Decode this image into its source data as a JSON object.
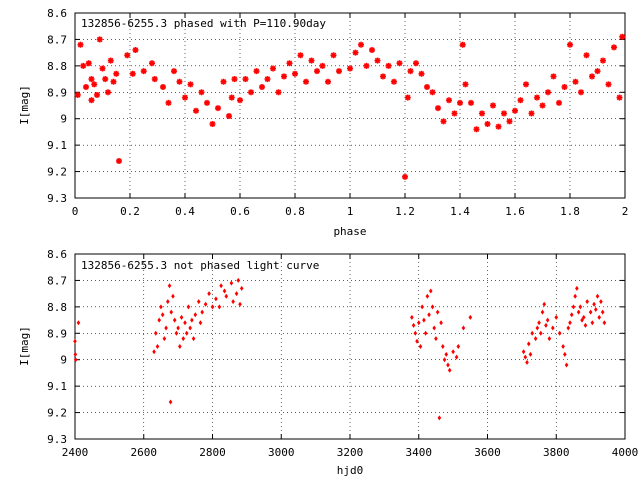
{
  "chart_data": [
    {
      "type": "scatter",
      "title": "132856-6255.3 phased with P=110.90day",
      "xlabel": "phase",
      "ylabel": "I[mag]",
      "xlim": [
        0,
        2
      ],
      "ylim": [
        8.6,
        9.3
      ],
      "y_inverted": true,
      "xticks": [
        0,
        0.2,
        0.4,
        0.6,
        0.8,
        1,
        1.2,
        1.4,
        1.6,
        1.8,
        2
      ],
      "yticks": [
        8.6,
        8.7,
        8.8,
        8.9,
        9,
        9.1,
        9.2,
        9.3
      ],
      "marker": "star",
      "color": "#ff0000",
      "x": [
        0.01,
        0.02,
        0.03,
        0.04,
        0.05,
        0.06,
        0.06,
        0.07,
        0.08,
        0.09,
        0.1,
        0.11,
        0.12,
        0.13,
        0.14,
        0.15,
        0.16,
        0.19,
        0.21,
        0.22,
        0.25,
        0.28,
        0.29,
        0.32,
        0.34,
        0.36,
        0.38,
        0.4,
        0.42,
        0.44,
        0.46,
        0.48,
        0.5,
        0.52,
        0.54,
        0.56,
        0.57,
        0.58,
        0.6,
        0.62,
        0.64,
        0.66,
        0.68,
        0.7,
        0.72,
        0.74,
        0.76,
        0.78,
        0.8,
        0.82,
        0.84,
        0.86,
        0.88,
        0.9,
        0.92,
        0.94,
        0.96,
        1.0,
        1.02,
        1.04,
        1.06,
        1.08,
        1.1,
        1.12,
        1.14,
        1.16,
        1.18,
        1.2,
        1.21,
        1.22,
        1.24,
        1.26,
        1.28,
        1.3,
        1.32,
        1.34,
        1.36,
        1.38,
        1.4,
        1.41,
        1.42,
        1.44,
        1.46,
        1.48,
        1.5,
        1.52,
        1.54,
        1.56,
        1.58,
        1.6,
        1.62,
        1.64,
        1.66,
        1.68,
        1.7,
        1.72,
        1.74,
        1.76,
        1.78,
        1.8,
        1.82,
        1.84,
        1.86,
        1.88,
        1.9,
        1.92,
        1.94,
        1.96,
        1.98,
        1.99
      ],
      "y": [
        8.91,
        8.72,
        8.8,
        8.88,
        8.79,
        8.85,
        8.93,
        8.87,
        8.91,
        8.7,
        8.81,
        8.85,
        8.9,
        8.78,
        8.86,
        8.83,
        9.16,
        8.76,
        8.83,
        8.74,
        8.82,
        8.79,
        8.85,
        8.88,
        8.94,
        8.82,
        8.86,
        8.92,
        8.87,
        8.97,
        8.9,
        8.94,
        9.02,
        8.96,
        8.86,
        8.99,
        8.92,
        8.85,
        8.93,
        8.85,
        8.9,
        8.82,
        8.88,
        8.85,
        8.81,
        8.9,
        8.84,
        8.79,
        8.83,
        8.76,
        8.86,
        8.78,
        8.82,
        8.8,
        8.86,
        8.76,
        8.82,
        8.81,
        8.75,
        8.72,
        8.8,
        8.74,
        8.78,
        8.84,
        8.8,
        8.86,
        8.79,
        9.22,
        8.92,
        8.82,
        8.79,
        8.83,
        8.88,
        8.9,
        8.96,
        9.01,
        8.93,
        8.98,
        8.94,
        8.72,
        8.87,
        8.94,
        9.04,
        8.98,
        9.02,
        8.95,
        9.03,
        8.98,
        9.01,
        8.97,
        8.93,
        8.87,
        8.98,
        8.92,
        8.95,
        8.9,
        8.84,
        8.94,
        8.88,
        8.72,
        8.86,
        8.9,
        8.76,
        8.84,
        8.82,
        8.78,
        8.87,
        8.73,
        8.92,
        8.69
      ]
    },
    {
      "type": "scatter",
      "title": "132856-6255.3 not phased light curve",
      "xlabel": "hjd0",
      "ylabel": "I[mag]",
      "xlim": [
        2400,
        4000
      ],
      "ylim": [
        8.6,
        9.3
      ],
      "y_inverted": true,
      "xticks": [
        2400,
        2600,
        2800,
        3000,
        3200,
        3400,
        3600,
        3800,
        4000
      ],
      "yticks": [
        8.6,
        8.7,
        8.8,
        8.9,
        9,
        9.1,
        9.2,
        9.3
      ],
      "marker": "diamond",
      "color": "#ff0000",
      "x": [
        2400,
        2401,
        2402,
        2410,
        2630,
        2635,
        2640,
        2645,
        2650,
        2655,
        2660,
        2665,
        2670,
        2675,
        2678,
        2680,
        2685,
        2690,
        2695,
        2700,
        2705,
        2710,
        2715,
        2720,
        2725,
        2730,
        2735,
        2740,
        2745,
        2750,
        2760,
        2765,
        2770,
        2780,
        2790,
        2800,
        2810,
        2820,
        2825,
        2835,
        2840,
        2855,
        2860,
        2870,
        2875,
        2880,
        2885,
        3380,
        3385,
        3390,
        3395,
        3400,
        3405,
        3410,
        3415,
        3420,
        3425,
        3430,
        3435,
        3440,
        3445,
        3450,
        3455,
        3460,
        3465,
        3470,
        3475,
        3480,
        3485,
        3490,
        3500,
        3510,
        3515,
        3530,
        3550,
        3705,
        3710,
        3715,
        3720,
        3725,
        3730,
        3740,
        3745,
        3750,
        3755,
        3760,
        3765,
        3770,
        3775,
        3780,
        3790,
        3800,
        3810,
        3820,
        3825,
        3830,
        3835,
        3840,
        3845,
        3850,
        3855,
        3860,
        3865,
        3870,
        3875,
        3880,
        3885,
        3890,
        3900,
        3905,
        3910,
        3915,
        3920,
        3925,
        3930,
        3935,
        3940
      ],
      "y": [
        8.93,
        8.98,
        9.0,
        8.86,
        8.97,
        8.9,
        8.95,
        8.85,
        8.8,
        8.83,
        8.92,
        8.88,
        8.78,
        8.72,
        9.16,
        8.82,
        8.76,
        8.85,
        8.9,
        8.88,
        8.95,
        8.84,
        8.92,
        8.86,
        8.9,
        8.8,
        8.88,
        8.85,
        8.92,
        8.83,
        8.78,
        8.86,
        8.82,
        8.79,
        8.75,
        8.8,
        8.77,
        8.8,
        8.72,
        8.74,
        8.76,
        8.71,
        8.78,
        8.75,
        8.7,
        8.79,
        8.73,
        8.84,
        8.87,
        8.9,
        8.93,
        8.86,
        8.95,
        8.8,
        8.85,
        8.9,
        8.76,
        8.83,
        8.74,
        8.8,
        8.88,
        8.92,
        8.82,
        9.22,
        8.86,
        8.95,
        9.0,
        8.98,
        9.02,
        9.04,
        8.97,
        8.99,
        8.95,
        8.88,
        8.84,
        8.97,
        8.99,
        9.01,
        8.94,
        8.98,
        8.9,
        8.92,
        8.88,
        8.86,
        8.9,
        8.82,
        8.79,
        8.87,
        8.85,
        8.92,
        8.88,
        8.84,
        8.9,
        8.95,
        8.98,
        9.02,
        8.88,
        8.86,
        8.83,
        8.8,
        8.76,
        8.73,
        8.82,
        8.8,
        8.85,
        8.84,
        8.87,
        8.78,
        8.82,
        8.86,
        8.79,
        8.81,
        8.76,
        8.84,
        8.78,
        8.82,
        8.86
      ]
    }
  ]
}
